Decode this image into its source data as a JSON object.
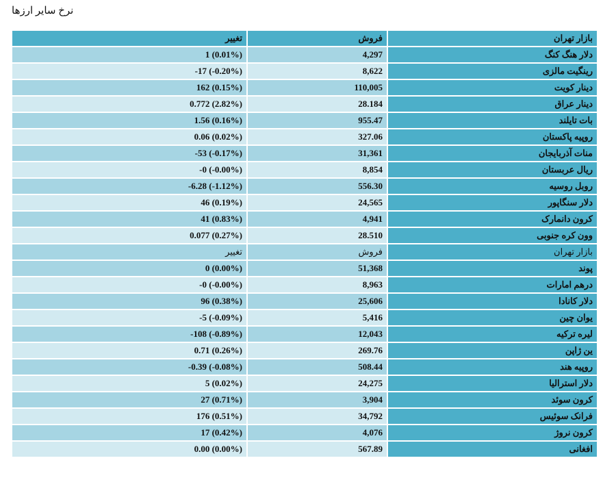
{
  "page": {
    "title": "نرخ سایر ارزها"
  },
  "table": {
    "headers": {
      "name": "بازار تهران",
      "sell": "فروش",
      "change": "تغییر"
    },
    "section1": [
      {
        "name": "دلار هنگ کنگ",
        "sell": "4,297",
        "change": "1 (0.01%)"
      },
      {
        "name": "رینگیت مالزی",
        "sell": "8,622",
        "change": "-17 (-0.20%)"
      },
      {
        "name": "دینار کویت",
        "sell": "110,005",
        "change": "162 (0.15%)"
      },
      {
        "name": "دینار عراق",
        "sell": "28.184",
        "change": "0.772 (2.82%)"
      },
      {
        "name": "بات تایلند",
        "sell": "955.47",
        "change": "1.56 (0.16%)"
      },
      {
        "name": "روپیه پاکستان",
        "sell": "327.06",
        "change": "0.06 (0.02%)"
      },
      {
        "name": "منات آذربایجان",
        "sell": "31,361",
        "change": "-53 (-0.17%)"
      },
      {
        "name": "ریال عربستان",
        "sell": "8,854",
        "change": "-0 (-0.00%)"
      },
      {
        "name": "روبل روسیه",
        "sell": "556.30",
        "change": "-6.28 (-1.12%)"
      },
      {
        "name": "دلار سنگاپور",
        "sell": "24,565",
        "change": "46 (0.19%)"
      },
      {
        "name": "کرون دانمارک",
        "sell": "4,941",
        "change": "41 (0.83%)"
      },
      {
        "name": "وون کره جنوبی",
        "sell": "28.510",
        "change": "0.077 (0.27%)"
      }
    ],
    "subheaders": {
      "name": "بازار تهران",
      "sell": "فروش",
      "change": "تغییر"
    },
    "section2": [
      {
        "name": "پوند",
        "sell": "51,368",
        "change": "0 (0.00%)"
      },
      {
        "name": "درهم امارات",
        "sell": "8,963",
        "change": "-0 (-0.00%)"
      },
      {
        "name": "دلار کانادا",
        "sell": "25,606",
        "change": "96 (0.38%)"
      },
      {
        "name": "یوان چین",
        "sell": "5,416",
        "change": "-5 (-0.09%)"
      },
      {
        "name": "لیره ترکیه",
        "sell": "12,043",
        "change": "-108 (-0.89%)"
      },
      {
        "name": "ین ژاپن",
        "sell": "269.76",
        "change": "0.71 (0.26%)"
      },
      {
        "name": "روپیه هند",
        "sell": "508.44",
        "change": "-0.39 (-0.08%)"
      },
      {
        "name": "دلار استرالیا",
        "sell": "24,275",
        "change": "5 (0.02%)"
      },
      {
        "name": "کرون سوئد",
        "sell": "3,904",
        "change": "27 (0.71%)"
      },
      {
        "name": "فرانک سوئیس",
        "sell": "34,792",
        "change": "176 (0.51%)"
      },
      {
        "name": "کرون نروژ",
        "sell": "4,076",
        "change": "17 (0.42%)"
      },
      {
        "name": "افغانی",
        "sell": "567.89",
        "change": "0.00 (0.00%)"
      }
    ]
  },
  "colors": {
    "header": "#4cafc9",
    "row_dark": "#a6d5e3",
    "row_light": "#d2eaf1"
  }
}
